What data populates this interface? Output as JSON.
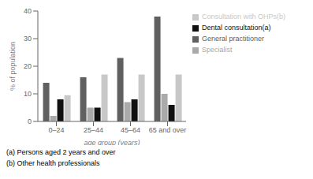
{
  "chart_data": {
    "type": "bar",
    "categories": [
      "0–24",
      "25–44",
      "45–64",
      "65 and over"
    ],
    "series": [
      {
        "name": "General practitioner",
        "color": "#606060",
        "values": [
          14,
          16,
          23,
          38
        ]
      },
      {
        "name": "Specialist",
        "color": "#aaaaaa",
        "values": [
          2,
          5,
          7,
          10
        ]
      },
      {
        "name": "Dental consultation(a)",
        "color": "#111111",
        "values": [
          8,
          5,
          8,
          6
        ]
      },
      {
        "name": "Consultation with OHPs(b)",
        "color": "#c8c8c8",
        "values": [
          9.5,
          17,
          17,
          17
        ]
      }
    ],
    "y_label": "% of population",
    "x_label": "age group (years)",
    "ylim": [
      0,
      40
    ],
    "yticks": [
      0,
      10,
      20,
      30,
      40
    ],
    "annotations": [
      "(a) Persons aged 2 years and over",
      "(b) Other health professionals"
    ],
    "grid": false,
    "legend": "right"
  }
}
